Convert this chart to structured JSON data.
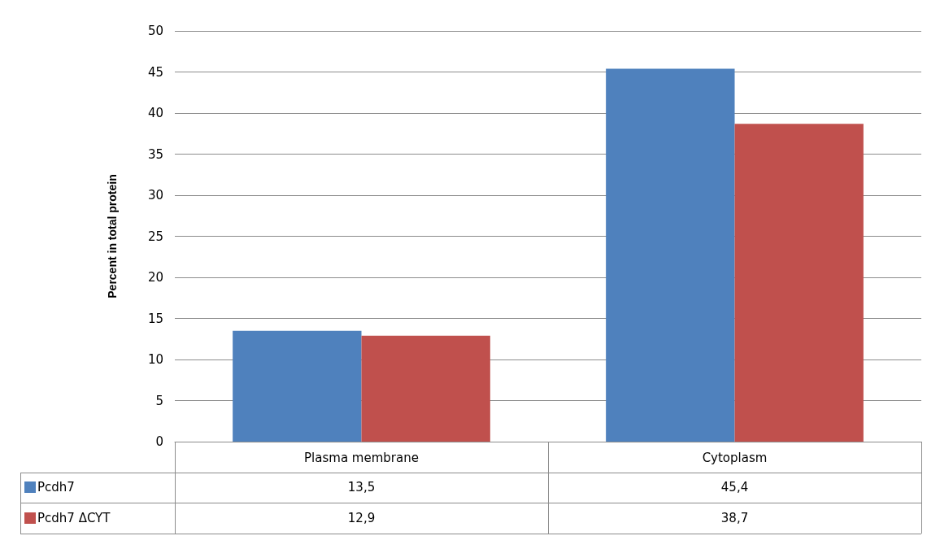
{
  "chart_data": {
    "type": "bar",
    "ylabel": "Percent in total protein",
    "categories": [
      "Plasma membrane",
      "Cytoplasm"
    ],
    "series": [
      {
        "name": "Pcdh7",
        "color": "#4f81bd",
        "values": [
          13.5,
          45.4
        ],
        "value_labels": [
          "13,5",
          "45,4"
        ]
      },
      {
        "name": "Pcdh7 ΔCYT",
        "color": "#c0504d",
        "values": [
          12.9,
          38.7
        ],
        "value_labels": [
          "12,9",
          "38,7"
        ]
      }
    ],
    "ylim": [
      0,
      50
    ],
    "yticks": [
      0,
      5,
      10,
      15,
      20,
      25,
      30,
      35,
      40,
      45,
      50
    ],
    "grid": "y",
    "legend": "bottom left"
  }
}
